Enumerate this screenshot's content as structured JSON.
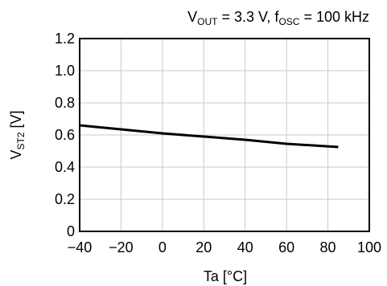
{
  "chart_data": {
    "type": "line",
    "condition": {
      "v_main": "V",
      "v_sub": "OUT",
      "v_val": " = 3.3 V, ",
      "f_main": "f",
      "f_sub": "OSC",
      "f_val": " = 100 kHz"
    },
    "xlabel": "Ta [°C]",
    "ylabel": {
      "main": "V",
      "sub": "ST2",
      "unit": " [V]"
    },
    "xlim": [
      -40,
      100
    ],
    "ylim": [
      0,
      1.2
    ],
    "x_ticks": [
      -40,
      -20,
      0,
      20,
      40,
      60,
      80,
      100
    ],
    "x_tick_labels": [
      "−40",
      "−20",
      "0",
      "20",
      "40",
      "60",
      "80",
      "100"
    ],
    "y_ticks": [
      0,
      0.2,
      0.4,
      0.6,
      0.8,
      1.0,
      1.2
    ],
    "y_tick_labels": [
      "0",
      "0.2",
      "0.4",
      "0.6",
      "0.8",
      "1.0",
      "1.2"
    ],
    "grid": true,
    "series": [
      {
        "x": [
          -40,
          -20,
          0,
          20,
          40,
          60,
          85
        ],
        "y": [
          0.66,
          0.635,
          0.61,
          0.59,
          0.57,
          0.545,
          0.525
        ]
      }
    ]
  }
}
